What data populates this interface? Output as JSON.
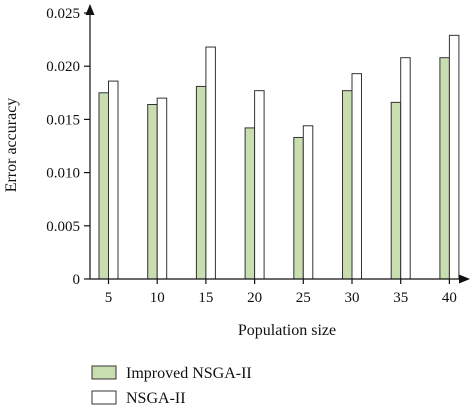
{
  "chart_data": {
    "type": "bar",
    "categories": [
      "5",
      "10",
      "15",
      "20",
      "25",
      "30",
      "35",
      "40"
    ],
    "series": [
      {
        "name": "Improved NSGA-II",
        "color": "#c8ddb0",
        "values": [
          0.0175,
          0.0164,
          0.0181,
          0.0142,
          0.0133,
          0.0177,
          0.0166,
          0.0208
        ]
      },
      {
        "name": "NSGA-II",
        "color": "#ffffff",
        "values": [
          0.0186,
          0.017,
          0.0218,
          0.0177,
          0.0144,
          0.0193,
          0.0208,
          0.0229
        ]
      }
    ],
    "xlabel": "Population size",
    "ylabel": "Error accuracy",
    "ylim": [
      0,
      0.025
    ],
    "yticks": [
      "0",
      "0.005",
      "0.010",
      "0.015",
      "0.020",
      "0.025"
    ],
    "grid": false,
    "legend_position": "bottom-left"
  }
}
